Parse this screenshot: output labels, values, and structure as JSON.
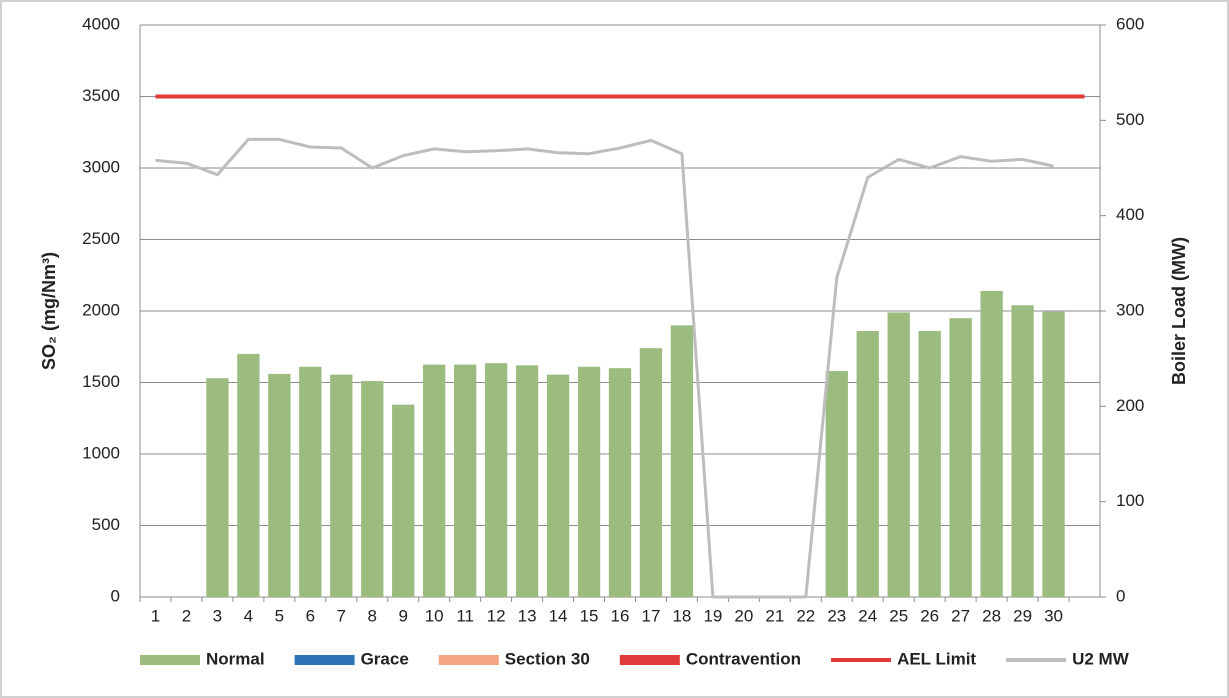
{
  "chart_data": {
    "type": "bar",
    "categories": [
      "1",
      "2",
      "3",
      "4",
      "5",
      "6",
      "7",
      "8",
      "9",
      "10",
      "11",
      "12",
      "13",
      "14",
      "15",
      "16",
      "17",
      "18",
      "19",
      "20",
      "21",
      "22",
      "23",
      "24",
      "25",
      "26",
      "27",
      "28",
      "29",
      "30",
      null
    ],
    "y_label": "SO₂ (mg/Nm³)",
    "y2_label": "Boiler Load (MW)",
    "ylim": [
      0,
      4000
    ],
    "yticks": [
      0,
      500,
      1000,
      1500,
      2000,
      2500,
      3000,
      3500,
      4000
    ],
    "y2lim": [
      0,
      600
    ],
    "y2ticks": [
      0,
      100,
      200,
      300,
      400,
      500,
      600
    ],
    "grid": true,
    "legend": "bottom",
    "series": [
      {
        "name": "Normal",
        "type": "bar",
        "color": "#9bbb7f",
        "values": [
          null,
          null,
          1530,
          1700,
          1560,
          1610,
          1555,
          1510,
          1345,
          1625,
          1625,
          1635,
          1620,
          1555,
          1610,
          1600,
          1740,
          1900,
          null,
          null,
          null,
          null,
          1580,
          1860,
          1990,
          1860,
          1950,
          2140,
          2040,
          1995,
          null
        ]
      },
      {
        "name": "Grace",
        "type": "bar",
        "color": "#2e75b6",
        "values": [
          null,
          null,
          null,
          null,
          null,
          null,
          null,
          null,
          null,
          null,
          null,
          null,
          null,
          null,
          null,
          null,
          null,
          null,
          null,
          null,
          null,
          null,
          null,
          null,
          null,
          null,
          null,
          null,
          null,
          null,
          null
        ]
      },
      {
        "name": "Section 30",
        "type": "bar",
        "color": "#f4a582",
        "values": [
          null,
          null,
          null,
          null,
          null,
          null,
          null,
          null,
          null,
          null,
          null,
          null,
          null,
          null,
          null,
          null,
          null,
          null,
          null,
          null,
          null,
          null,
          null,
          null,
          null,
          null,
          null,
          null,
          null,
          null,
          null
        ]
      },
      {
        "name": "Contravention",
        "type": "bar",
        "color": "#e03a3a",
        "values": [
          null,
          null,
          null,
          null,
          null,
          null,
          null,
          null,
          null,
          null,
          null,
          null,
          null,
          null,
          null,
          null,
          null,
          null,
          null,
          null,
          null,
          null,
          null,
          null,
          null,
          null,
          null,
          null,
          null,
          null,
          null
        ]
      },
      {
        "name": "AEL Limit",
        "type": "line",
        "color": "#e03a3a",
        "values": [
          3500,
          3500,
          3500,
          3500,
          3500,
          3500,
          3500,
          3500,
          3500,
          3500,
          3500,
          3500,
          3500,
          3500,
          3500,
          3500,
          3500,
          3500,
          3500,
          3500,
          3500,
          3500,
          3500,
          3500,
          3500,
          3500,
          3500,
          3500,
          3500,
          3500,
          3500
        ]
      },
      {
        "name": "U2 MW",
        "type": "line",
        "axis": "y2",
        "color": "#bdbdbd",
        "values": [
          458,
          455,
          443,
          480,
          480,
          472,
          471,
          450,
          463,
          470,
          467,
          468,
          470,
          466,
          465,
          471,
          479,
          465,
          0,
          0,
          0,
          0,
          335,
          440,
          459,
          450,
          462,
          457,
          459,
          452,
          null
        ]
      }
    ]
  }
}
